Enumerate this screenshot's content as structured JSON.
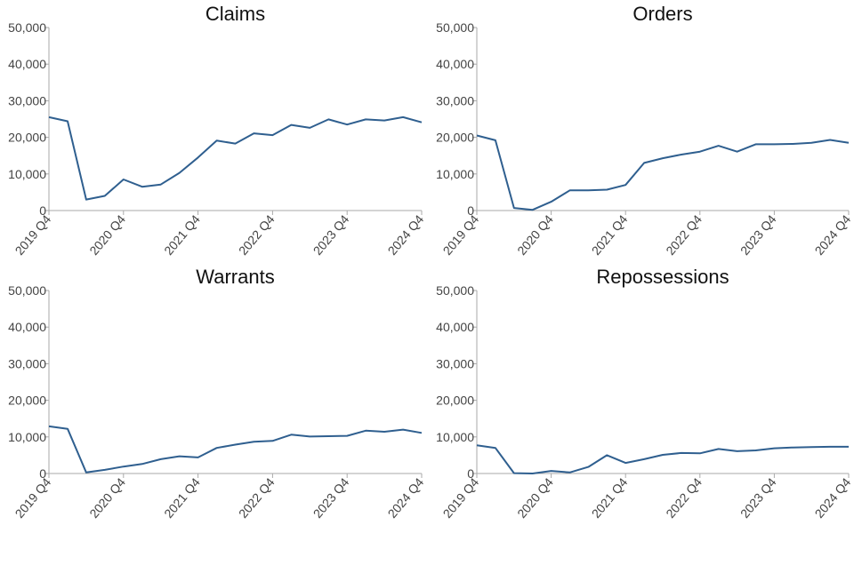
{
  "chart_data": [
    {
      "type": "line",
      "title": "Claims",
      "x": [
        "2019 Q4",
        "2020 Q1",
        "2020 Q2",
        "2020 Q3",
        "2020 Q4",
        "2021 Q1",
        "2021 Q2",
        "2021 Q3",
        "2021 Q4",
        "2022 Q1",
        "2022 Q2",
        "2022 Q3",
        "2022 Q4",
        "2023 Q1",
        "2023 Q2",
        "2023 Q3",
        "2023 Q4",
        "2024 Q1",
        "2024 Q2",
        "2024 Q3",
        "2024 Q4"
      ],
      "xticks": [
        "2019 Q4",
        "2020 Q4",
        "2021 Q4",
        "2022 Q4",
        "2023 Q4",
        "2024 Q4"
      ],
      "values": [
        25500,
        24400,
        3000,
        4000,
        8500,
        6500,
        7100,
        10300,
        14500,
        19100,
        18300,
        21100,
        20600,
        23400,
        22600,
        24900,
        23500,
        24900,
        24600,
        25500,
        24100
      ],
      "ylim": [
        0,
        50000
      ],
      "yticks": [
        "0",
        "10,000",
        "20,000",
        "30,000",
        "40,000",
        "50,000"
      ],
      "ytick_values": [
        0,
        10000,
        20000,
        30000,
        40000,
        50000
      ]
    },
    {
      "type": "line",
      "title": "Orders",
      "x": [
        "2019 Q4",
        "2020 Q1",
        "2020 Q2",
        "2020 Q3",
        "2020 Q4",
        "2021 Q1",
        "2021 Q2",
        "2021 Q3",
        "2021 Q4",
        "2022 Q1",
        "2022 Q2",
        "2022 Q3",
        "2022 Q4",
        "2023 Q1",
        "2023 Q2",
        "2023 Q3",
        "2023 Q4",
        "2024 Q1",
        "2024 Q2",
        "2024 Q3",
        "2024 Q4"
      ],
      "xticks": [
        "2019 Q4",
        "2020 Q4",
        "2021 Q4",
        "2022 Q4",
        "2023 Q4",
        "2024 Q4"
      ],
      "values": [
        20500,
        19200,
        700,
        200,
        2400,
        5500,
        5500,
        5700,
        7000,
        13000,
        14300,
        15300,
        16100,
        17700,
        16100,
        18100,
        18100,
        18200,
        18500,
        19300,
        18500
      ],
      "ylim": [
        0,
        50000
      ],
      "yticks": [
        "0",
        "10,000",
        "20,000",
        "30,000",
        "40,000",
        "50,000"
      ],
      "ytick_values": [
        0,
        10000,
        20000,
        30000,
        40000,
        50000
      ]
    },
    {
      "type": "line",
      "title": "Warrants",
      "x": [
        "2019 Q4",
        "2020 Q1",
        "2020 Q2",
        "2020 Q3",
        "2020 Q4",
        "2021 Q1",
        "2021 Q2",
        "2021 Q3",
        "2021 Q4",
        "2022 Q1",
        "2022 Q2",
        "2022 Q3",
        "2022 Q4",
        "2023 Q1",
        "2023 Q2",
        "2023 Q3",
        "2023 Q4",
        "2024 Q1",
        "2024 Q2",
        "2024 Q3",
        "2024 Q4"
      ],
      "xticks": [
        "2019 Q4",
        "2020 Q4",
        "2021 Q4",
        "2022 Q4",
        "2023 Q4",
        "2024 Q4"
      ],
      "values": [
        12900,
        12200,
        300,
        1000,
        1900,
        2600,
        3900,
        4700,
        4400,
        7000,
        7900,
        8700,
        8900,
        10600,
        10100,
        10200,
        10300,
        11700,
        11400,
        12000,
        11100
      ],
      "ylim": [
        0,
        50000
      ],
      "yticks": [
        "0",
        "10,000",
        "20,000",
        "30,000",
        "40,000",
        "50,000"
      ],
      "ytick_values": [
        0,
        10000,
        20000,
        30000,
        40000,
        50000
      ]
    },
    {
      "type": "line",
      "title": "Repossessions",
      "x": [
        "2019 Q4",
        "2020 Q1",
        "2020 Q2",
        "2020 Q3",
        "2020 Q4",
        "2021 Q1",
        "2021 Q2",
        "2021 Q3",
        "2021 Q4",
        "2022 Q1",
        "2022 Q2",
        "2022 Q3",
        "2022 Q4",
        "2023 Q1",
        "2023 Q2",
        "2023 Q3",
        "2023 Q4",
        "2024 Q1",
        "2024 Q2",
        "2024 Q3",
        "2024 Q4"
      ],
      "xticks": [
        "2019 Q4",
        "2020 Q4",
        "2021 Q4",
        "2022 Q4",
        "2023 Q4",
        "2024 Q4"
      ],
      "values": [
        7700,
        7000,
        100,
        0,
        700,
        300,
        1800,
        5000,
        2900,
        3900,
        5100,
        5600,
        5500,
        6700,
        6100,
        6300,
        6900,
        7100,
        7200,
        7300,
        7300
      ],
      "ylim": [
        0,
        50000
      ],
      "yticks": [
        "0",
        "10,000",
        "20,000",
        "30,000",
        "40,000",
        "50,000"
      ],
      "ytick_values": [
        0,
        10000,
        20000,
        30000,
        40000,
        50000
      ]
    }
  ],
  "colors": {
    "line": "#2f5f8f",
    "axis": "#aaaaaa"
  }
}
